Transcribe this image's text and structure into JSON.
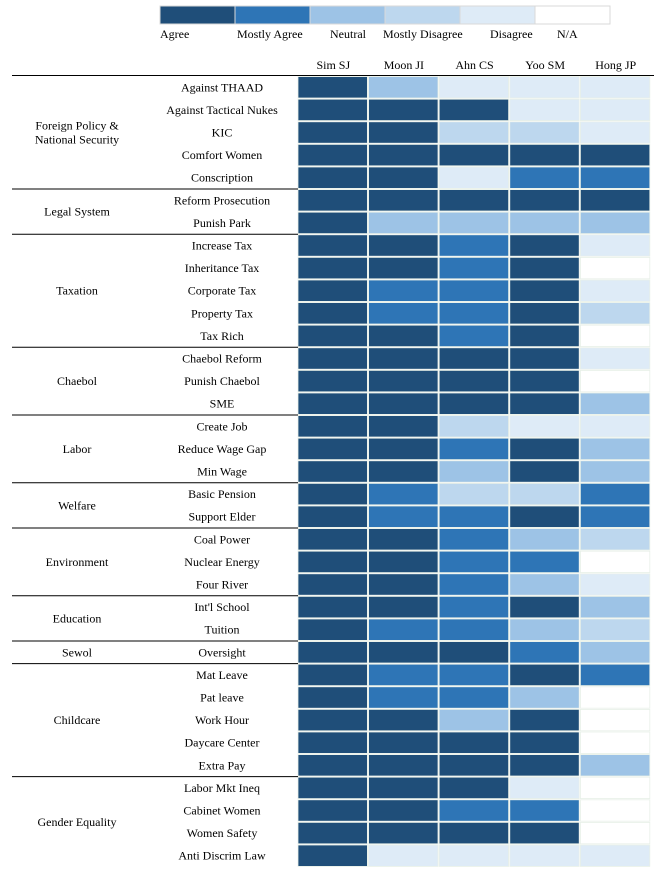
{
  "chart_data": {
    "type": "heatmap",
    "title": "",
    "legend": [
      {
        "label": "Agree",
        "color": "#1f4e79"
      },
      {
        "label": "Mostly Agree",
        "color": "#2e75b6"
      },
      {
        "label": "Neutral",
        "color": "#9dc3e6"
      },
      {
        "label": "Mostly Disagree",
        "color": "#bdd7ee"
      },
      {
        "label": "Disagree",
        "color": "#deebf7"
      },
      {
        "label": "N/A",
        "color": "#ffffff"
      }
    ],
    "candidates": [
      "Sim SJ",
      "Moon JI",
      "Ahn CS",
      "Yoo SM",
      "Hong JP"
    ],
    "groups": [
      {
        "name": "Foreign Policy & National Security",
        "issues": [
          {
            "label": "Against THAAD",
            "values": [
              0,
              2,
              4,
              4,
              4
            ]
          },
          {
            "label": "Against Tactical Nukes",
            "values": [
              0,
              0,
              0,
              4,
              4
            ]
          },
          {
            "label": "KIC",
            "values": [
              0,
              0,
              3,
              3,
              4
            ]
          },
          {
            "label": "Comfort Women",
            "values": [
              0,
              0,
              0,
              0,
              0
            ]
          },
          {
            "label": "Conscription",
            "values": [
              0,
              0,
              4,
              1,
              1
            ]
          }
        ]
      },
      {
        "name": "Legal System",
        "issues": [
          {
            "label": "Reform Prosecution",
            "values": [
              0,
              0,
              0,
              0,
              0
            ]
          },
          {
            "label": "Punish Park",
            "values": [
              0,
              2,
              2,
              2,
              2
            ]
          }
        ]
      },
      {
        "name": "Taxation",
        "issues": [
          {
            "label": "Increase Tax",
            "values": [
              0,
              0,
              1,
              0,
              4
            ]
          },
          {
            "label": "Inheritance Tax",
            "values": [
              0,
              0,
              1,
              0,
              5
            ]
          },
          {
            "label": "Corporate Tax",
            "values": [
              0,
              1,
              1,
              0,
              4
            ]
          },
          {
            "label": "Property Tax",
            "values": [
              0,
              1,
              1,
              0,
              3
            ]
          },
          {
            "label": "Tax Rich",
            "values": [
              0,
              0,
              1,
              0,
              5
            ]
          }
        ]
      },
      {
        "name": "Chaebol",
        "issues": [
          {
            "label": "Chaebol Reform",
            "values": [
              0,
              0,
              0,
              0,
              4
            ]
          },
          {
            "label": "Punish Chaebol",
            "values": [
              0,
              0,
              0,
              0,
              5
            ]
          },
          {
            "label": "SME",
            "values": [
              0,
              0,
              0,
              0,
              2
            ]
          }
        ]
      },
      {
        "name": "Labor",
        "issues": [
          {
            "label": "Create Job",
            "values": [
              0,
              0,
              3,
              4,
              4
            ]
          },
          {
            "label": "Reduce Wage Gap",
            "values": [
              0,
              0,
              1,
              0,
              2
            ]
          },
          {
            "label": "Min Wage",
            "values": [
              0,
              0,
              2,
              0,
              2
            ]
          }
        ]
      },
      {
        "name": "Welfare",
        "issues": [
          {
            "label": "Basic Pension",
            "values": [
              0,
              1,
              3,
              3,
              1
            ]
          },
          {
            "label": "Support Elder",
            "values": [
              0,
              1,
              1,
              0,
              1
            ]
          }
        ]
      },
      {
        "name": "Environment",
        "issues": [
          {
            "label": "Coal Power",
            "values": [
              0,
              0,
              1,
              2,
              3
            ]
          },
          {
            "label": "Nuclear Energy",
            "values": [
              0,
              0,
              1,
              1,
              5
            ]
          },
          {
            "label": "Four River",
            "values": [
              0,
              0,
              1,
              2,
              4
            ]
          }
        ]
      },
      {
        "name": "Education",
        "issues": [
          {
            "label": "Int'l School",
            "values": [
              0,
              0,
              1,
              0,
              2
            ]
          },
          {
            "label": "Tuition",
            "values": [
              0,
              1,
              1,
              2,
              3
            ]
          }
        ]
      },
      {
        "name": "Sewol",
        "issues": [
          {
            "label": "Oversight",
            "values": [
              0,
              0,
              0,
              1,
              2
            ]
          }
        ]
      },
      {
        "name": "Childcare",
        "issues": [
          {
            "label": "Mat Leave",
            "values": [
              0,
              1,
              1,
              0,
              1
            ]
          },
          {
            "label": "Pat leave",
            "values": [
              0,
              1,
              1,
              2,
              5
            ]
          },
          {
            "label": "Work Hour",
            "values": [
              0,
              0,
              2,
              0,
              5
            ]
          },
          {
            "label": "Daycare Center",
            "values": [
              0,
              0,
              0,
              0,
              5
            ]
          },
          {
            "label": "Extra Pay",
            "values": [
              0,
              0,
              0,
              0,
              2
            ]
          }
        ]
      },
      {
        "name": "Gender Equality",
        "issues": [
          {
            "label": "Labor Mkt Ineq",
            "values": [
              0,
              0,
              0,
              4,
              5
            ]
          },
          {
            "label": "Cabinet Women",
            "values": [
              0,
              0,
              1,
              1,
              5
            ]
          },
          {
            "label": "Women Safety",
            "values": [
              0,
              0,
              0,
              0,
              5
            ]
          },
          {
            "label": "Anti Discrim Law",
            "values": [
              0,
              4,
              4,
              4,
              4
            ]
          }
        ]
      }
    ]
  }
}
